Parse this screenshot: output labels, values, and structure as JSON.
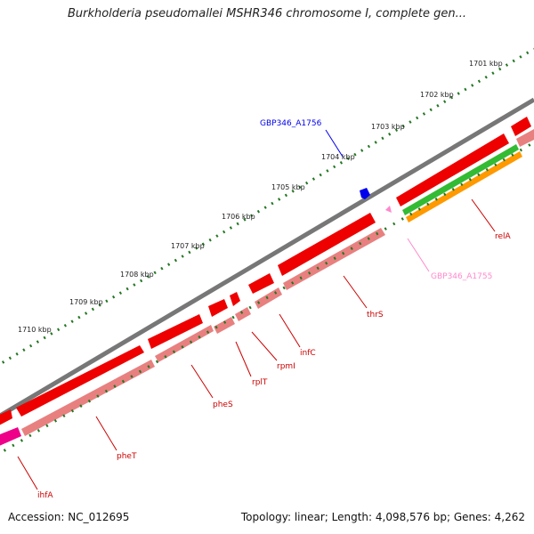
{
  "title": "Burkholderia pseudomallei MSHR346 chromosome I, complete gen...",
  "footer": {
    "accession": "Accession: NC_012695",
    "summary": "Topology: linear; Length: 4,098,576 bp; Genes: 4,262"
  },
  "colors": {
    "backbone": "#777777",
    "cds_forward": "#ee0000",
    "cds_pale": "#e88080",
    "rrna": "#33bb33",
    "trna": "#ff9900",
    "misc": "#ee0088",
    "highlight_blue": "#0000ee",
    "highlight_pink": "#ff88cc",
    "scale_dots": "#227722",
    "label_red": "#cc0000"
  },
  "scale": [
    {
      "label": "1701 kbp"
    },
    {
      "label": "1702 kbp"
    },
    {
      "label": "1703 kbp"
    },
    {
      "label": "1704 kbp"
    },
    {
      "label": "1705 kbp"
    },
    {
      "label": "1706 kbp"
    },
    {
      "label": "1707 kbp"
    },
    {
      "label": "1708 kbp"
    },
    {
      "label": "1709 kbp"
    },
    {
      "label": "1710 kbp"
    }
  ],
  "genes": {
    "relA": "relA",
    "thrS": "thrS",
    "infC": "infC",
    "rpmI": "rpmI",
    "rplT": "rplT",
    "pheS": "pheS",
    "pheT": "pheT",
    "ihfA": "ihfA",
    "a1756": "GBP346_A1756",
    "a1755": "GBP346_A1755"
  }
}
